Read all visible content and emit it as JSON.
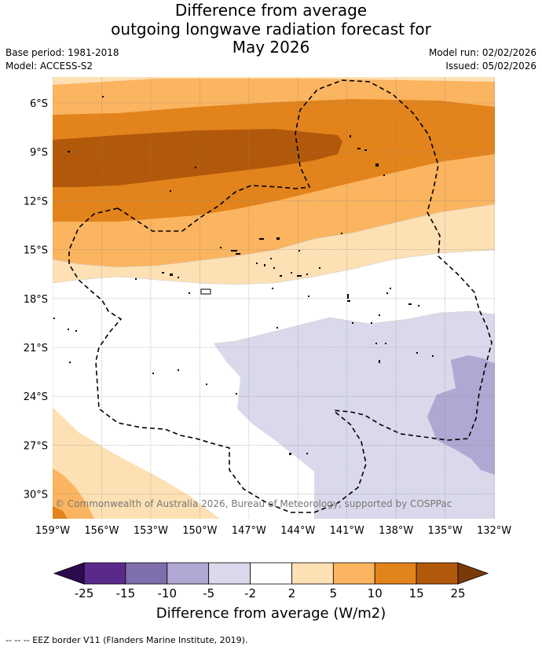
{
  "title": {
    "line1": "Difference from average",
    "line2": "outgoing longwave radiation forecast for",
    "line3": "May 2026"
  },
  "meta": {
    "base_period": "Base period: 1981-2018",
    "model": "Model: ACCESS-S2",
    "model_run": "Model run: 02/02/2026",
    "issued": "Issued: 05/02/2026"
  },
  "map": {
    "lat_ticks": [
      "6°S",
      "9°S",
      "12°S",
      "15°S",
      "18°S",
      "21°S",
      "24°S",
      "27°S",
      "30°S"
    ],
    "lon_ticks": [
      "159°W",
      "156°W",
      "153°W",
      "150°W",
      "147°W",
      "144°W",
      "141°W",
      "138°W",
      "135°W",
      "132°W"
    ],
    "copyright": "© Commonwealth of Australia 2026, Bureau of Meteorology, supported by COSPPac"
  },
  "colorbar": {
    "ticks": [
      "-25",
      "-15",
      "-10",
      "-5",
      "-2",
      "2",
      "5",
      "10",
      "15",
      "25"
    ],
    "colors": [
      "#5a2a8a",
      "#7f6eac",
      "#b0a8d2",
      "#d9d9eb",
      "#ffffff",
      "#fde0b4",
      "#fbb45f",
      "#e2831b",
      "#b2580a"
    ],
    "under_color": "#2d0a4e",
    "over_color": "#7a3a07",
    "label": "Difference from average (W/m2)"
  },
  "footnote": "--  --  -- EEZ border V11 (Flanders Marine Institute, 2019)."
}
